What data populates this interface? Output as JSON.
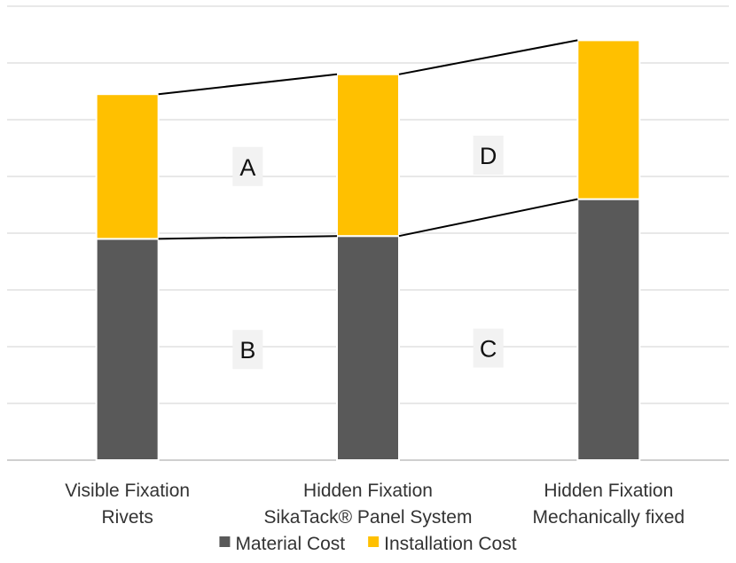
{
  "chart_data": {
    "type": "bar",
    "stacked": true,
    "categories": [
      [
        "Visible Fixation",
        "Rivets"
      ],
      [
        "Hidden Fixation",
        "SikaTack® Panel System"
      ],
      [
        "Hidden Fixation",
        "Mechanically fixed"
      ]
    ],
    "series": [
      {
        "name": "Material Cost",
        "color": "#595959",
        "values": [
          3.9,
          3.95,
          4.6
        ]
      },
      {
        "name": "Installation Cost",
        "color": "#FFC000",
        "values": [
          2.55,
          2.85,
          2.8
        ]
      }
    ],
    "ylim": [
      0,
      8
    ],
    "y_gridline_step": 1,
    "y_tick_labels_shown": false,
    "grid": true,
    "legend": "bottom-center",
    "connector_lines": true,
    "region_labels": [
      {
        "text": "A",
        "between": [
          0,
          1
        ],
        "series": 1
      },
      {
        "text": "B",
        "between": [
          0,
          1
        ],
        "series": 0
      },
      {
        "text": "D",
        "between": [
          1,
          2
        ],
        "series": 1
      },
      {
        "text": "C",
        "between": [
          1,
          2
        ],
        "series": 0
      }
    ]
  }
}
